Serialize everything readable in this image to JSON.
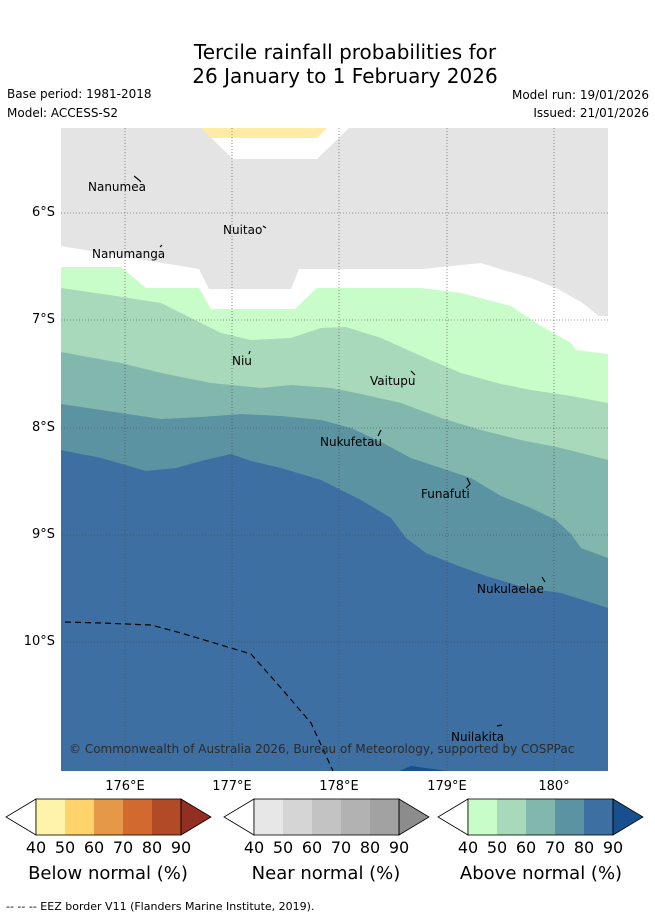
{
  "title": {
    "line1": "Tercile rainfall probabilities for",
    "line2": "26 January to 1 February 2026"
  },
  "meta": {
    "base_period": "Base period: 1981-2018",
    "model": "Model: ACCESS-S2",
    "model_run": "Model run: 19/01/2026",
    "issued": "Issued: 21/01/2026"
  },
  "axes": {
    "lat_labels": [
      "6°S",
      "7°S",
      "8°S",
      "9°S",
      "10°S"
    ],
    "lon_labels": [
      "176°E",
      "177°E",
      "178°E",
      "179°E",
      "180°"
    ]
  },
  "islands": {
    "nanumea": "Nanumea",
    "nuitao": "Nuitao",
    "nanumanga": "Nanumanga",
    "niu": "Niu",
    "vaitupu": "Vaitupu",
    "nukufetau": "Nukufetau",
    "funafuti": "Funafuti",
    "nukulaelae": "Nukulaelae",
    "nuilakita": "Nuilakita"
  },
  "copyright": "© Commonwealth of Australia 2026, Bureau of Meteorology, supported by COSPPac",
  "colorbars": {
    "below": {
      "title": "Below normal (%)",
      "colors": [
        "#fff2aa",
        "#ffd36b",
        "#e59848",
        "#d2692f",
        "#b24a28",
        "#932e22"
      ]
    },
    "near": {
      "title": "Near normal (%)",
      "colors": [
        "#e7e7e7",
        "#d5d5d5",
        "#c3c3c3",
        "#b2b2b2",
        "#a2a2a2",
        "#8c8c8c"
      ]
    },
    "above": {
      "title": "Above normal (%)",
      "colors": [
        "#c8fcc8",
        "#a7d9ba",
        "#82b7ae",
        "#5c93a2",
        "#3d6fa2",
        "#17508c"
      ]
    },
    "ticks": [
      "40",
      "50",
      "60",
      "70",
      "80",
      "90"
    ]
  },
  "footer": "-- -- -- EEZ border V11 (Flanders Marine Institute, 2019)."
}
